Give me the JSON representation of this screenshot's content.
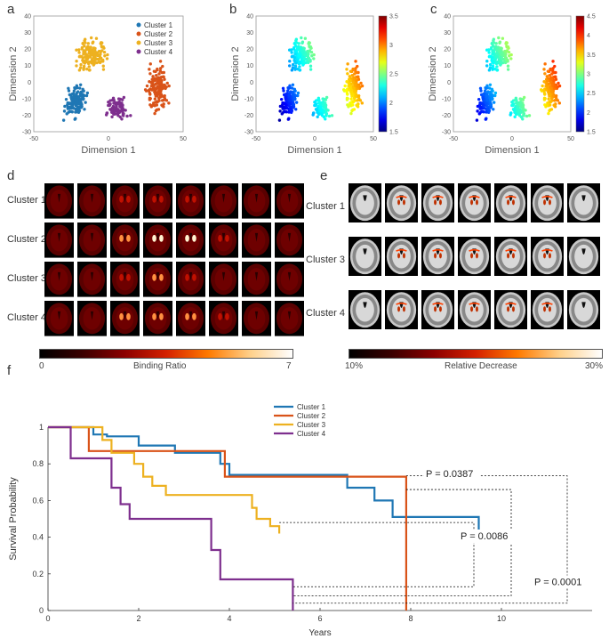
{
  "panel_labels": {
    "a": "a",
    "b": "b",
    "c": "c",
    "d": "d",
    "e": "e",
    "f": "f"
  },
  "scatter": {
    "xlabel": "Dimension 1",
    "ylabel": "Dimension 2",
    "xticks": [
      "-50",
      "0",
      "50"
    ],
    "yticks_a": [
      "40",
      "30",
      "20",
      "10",
      "0",
      "-10",
      "-20",
      "-30"
    ],
    "yticks_bc": [
      "40",
      "30",
      "20",
      "10",
      "0",
      "-10",
      "-20",
      "-30"
    ],
    "legend": [
      "Cluster 1",
      "Cluster 2",
      "Cluster 3",
      "Cluster 4"
    ],
    "colors": [
      "#1f77b4",
      "#d95319",
      "#edb120",
      "#7e2f8e"
    ],
    "colorbar_b": [
      "3.5",
      "3",
      "2.5",
      "2",
      "1.5"
    ],
    "colorbar_c": [
      "4.5",
      "4",
      "3.5",
      "3",
      "2.5",
      "2",
      "1.5"
    ]
  },
  "panel_d": {
    "rows": [
      "Cluster 1",
      "Cluster 2",
      "Cluster 3",
      "Cluster 4"
    ],
    "cb_min": "0",
    "cb_max": "7",
    "cb_label": "Binding Ratio"
  },
  "panel_e": {
    "rows": [
      "Cluster 1",
      "Cluster 3",
      "Cluster 4"
    ],
    "cb_min": "10%",
    "cb_max": "30%",
    "cb_label": "Relative Decrease"
  },
  "chart_data": {
    "type": "line",
    "xlabel": "Years",
    "ylabel": "Survival Probability",
    "xlim": [
      0,
      12
    ],
    "ylim": [
      0,
      1
    ],
    "xticks": [
      "0",
      "2",
      "4",
      "6",
      "8",
      "10"
    ],
    "yticks": [
      "0",
      "0.2",
      "0.4",
      "0.6",
      "0.8",
      "1"
    ],
    "legend_position": "top-center",
    "series": [
      {
        "name": "Cluster 1",
        "color": "#1f77b4",
        "x": [
          0,
          1.0,
          1.0,
          1.3,
          1.3,
          2.0,
          2.0,
          2.8,
          2.8,
          3.8,
          3.8,
          4.0,
          4.0,
          6.6,
          6.6,
          7.2,
          7.2,
          7.6,
          7.6,
          9.5,
          9.5
        ],
        "y": [
          1,
          1,
          0.96,
          0.96,
          0.95,
          0.95,
          0.9,
          0.9,
          0.86,
          0.86,
          0.8,
          0.8,
          0.74,
          0.74,
          0.67,
          0.67,
          0.6,
          0.6,
          0.51,
          0.51,
          0.39
        ]
      },
      {
        "name": "Cluster 2",
        "color": "#d95319",
        "x": [
          0,
          0.9,
          0.9,
          3.9,
          3.9,
          7.9,
          7.9
        ],
        "y": [
          1,
          1,
          0.87,
          0.87,
          0.73,
          0.73,
          0
        ]
      },
      {
        "name": "Cluster 3",
        "color": "#edb120",
        "x": [
          0,
          1.2,
          1.2,
          1.4,
          1.4,
          1.9,
          1.9,
          2.1,
          2.1,
          2.3,
          2.3,
          2.6,
          2.6,
          4.5,
          4.5,
          4.6,
          4.6,
          4.9,
          4.9,
          5.1,
          5.1
        ],
        "y": [
          1,
          1,
          0.93,
          0.93,
          0.86,
          0.86,
          0.8,
          0.8,
          0.73,
          0.73,
          0.68,
          0.68,
          0.63,
          0.63,
          0.56,
          0.56,
          0.5,
          0.5,
          0.46,
          0.46,
          0.42
        ]
      },
      {
        "name": "Cluster 4",
        "color": "#7e2f8e",
        "x": [
          0,
          0.5,
          0.5,
          1.4,
          1.4,
          1.6,
          1.6,
          1.8,
          1.8,
          3.6,
          3.6,
          3.8,
          3.8,
          5.4,
          5.4
        ],
        "y": [
          1,
          1,
          0.83,
          0.83,
          0.67,
          0.67,
          0.58,
          0.58,
          0.5,
          0.5,
          0.33,
          0.33,
          0.17,
          0.17,
          0
        ]
      }
    ],
    "annotations": [
      "P = 0.0387",
      "P = 0.0086",
      "P = 0.0001"
    ]
  }
}
